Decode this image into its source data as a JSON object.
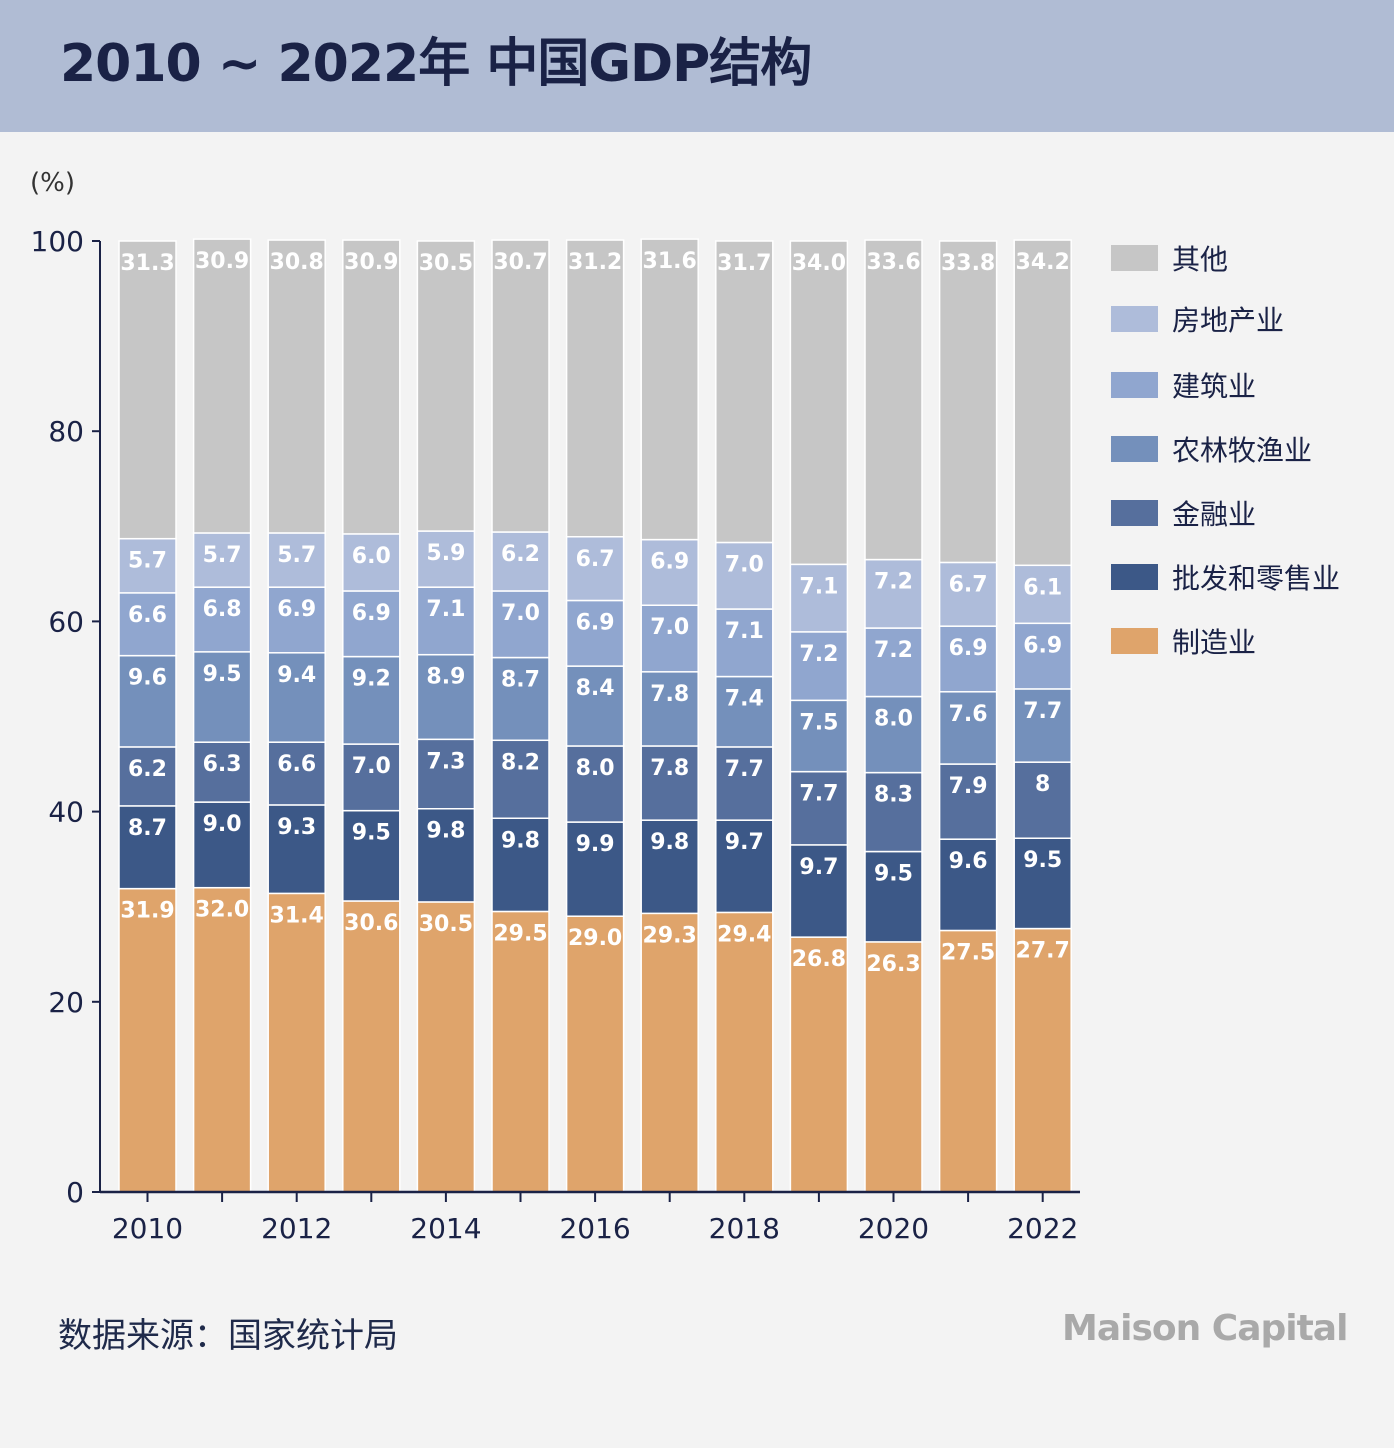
{
  "header": {
    "title": "2010 ~ 2022年 中国GDP结构"
  },
  "unit_label": "(%)",
  "footer": {
    "source": "数据来源：国家统计局",
    "brand": "Maison Capital"
  },
  "chart_data": {
    "type": "bar",
    "stacked": true,
    "categories": [
      "2010",
      "2011",
      "2012",
      "2013",
      "2014",
      "2015",
      "2016",
      "2017",
      "2018",
      "2019",
      "2020",
      "2021",
      "2022"
    ],
    "x_tick_labels": [
      "2010",
      "",
      "2012",
      "",
      "2014",
      "",
      "2016",
      "",
      "2018",
      "",
      "2020",
      "",
      "2022"
    ],
    "ylim": [
      0,
      100
    ],
    "yticks": [
      0,
      20,
      40,
      60,
      80,
      100
    ],
    "ylabel": "(%)",
    "legend_position": "right",
    "grid": false,
    "series": [
      {
        "name": "制造业",
        "color": "#dfa46b",
        "values": [
          31.9,
          32.0,
          31.4,
          30.6,
          30.5,
          29.5,
          29.0,
          29.3,
          29.4,
          26.8,
          26.3,
          27.5,
          27.7
        ],
        "labels": [
          "31.9",
          "32.0",
          "31.4",
          "30.6",
          "30.5",
          "29.5",
          "29.0",
          "29.3",
          "29.4",
          "26.8",
          "26.3",
          "27.5",
          "27.7"
        ]
      },
      {
        "name": "批发和零售业",
        "color": "#3c5887",
        "values": [
          8.7,
          9.0,
          9.3,
          9.5,
          9.8,
          9.8,
          9.9,
          9.8,
          9.7,
          9.7,
          9.5,
          9.6,
          9.5
        ],
        "labels": [
          "8.7",
          "9.0",
          "9.3",
          "9.5",
          "9.8",
          "9.8",
          "9.9",
          "9.8",
          "9.7",
          "9.7",
          "9.5",
          "9.6",
          "9.5"
        ]
      },
      {
        "name": "金融业",
        "color": "#566f9d",
        "values": [
          6.2,
          6.3,
          6.6,
          7.0,
          7.3,
          8.2,
          8.0,
          7.8,
          7.7,
          7.7,
          8.3,
          7.9,
          8
        ],
        "labels": [
          "6.2",
          "6.3",
          "6.6",
          "7.0",
          "7.3",
          "8.2",
          "8.0",
          "7.8",
          "7.7",
          "7.7",
          "8.3",
          "7.9",
          "8"
        ]
      },
      {
        "name": "农林牧渔业",
        "color": "#7490bb",
        "values": [
          9.6,
          9.5,
          9.4,
          9.2,
          8.9,
          8.7,
          8.4,
          7.8,
          7.4,
          7.5,
          8.0,
          7.6,
          7.7
        ],
        "labels": [
          "9.6",
          "9.5",
          "9.4",
          "9.2",
          "8.9",
          "8.7",
          "8.4",
          "7.8",
          "7.4",
          "7.5",
          "8.0",
          "7.6",
          "7.7"
        ]
      },
      {
        "name": "建筑业",
        "color": "#90a6cf",
        "values": [
          6.6,
          6.8,
          6.9,
          6.9,
          7.1,
          7.0,
          6.9,
          7.0,
          7.1,
          7.2,
          7.2,
          6.9,
          6.9
        ],
        "labels": [
          "6.6",
          "6.8",
          "6.9",
          "6.9",
          "7.1",
          "7.0",
          "6.9",
          "7.0",
          "7.1",
          "7.2",
          "7.2",
          "6.9",
          "6.9"
        ]
      },
      {
        "name": "房地产业",
        "color": "#aebcda",
        "values": [
          5.7,
          5.7,
          5.7,
          6.0,
          5.9,
          6.2,
          6.7,
          6.9,
          7.0,
          7.1,
          7.2,
          6.7,
          6.1
        ],
        "labels": [
          "5.7",
          "5.7",
          "5.7",
          "6.0",
          "5.9",
          "6.2",
          "6.7",
          "6.9",
          "7.0",
          "7.1",
          "7.2",
          "6.7",
          "6.1"
        ]
      },
      {
        "name": "其他",
        "color": "#c6c6c6",
        "values": [
          31.3,
          30.9,
          30.8,
          30.9,
          30.5,
          30.7,
          31.2,
          31.6,
          31.7,
          34.0,
          33.6,
          33.8,
          34.2
        ],
        "labels": [
          "31.3",
          "30.9",
          "30.8",
          "30.9",
          "30.5",
          "30.7",
          "31.2",
          "31.6",
          "31.7",
          "34.0",
          "33.6",
          "33.8",
          "34.2"
        ]
      }
    ]
  }
}
